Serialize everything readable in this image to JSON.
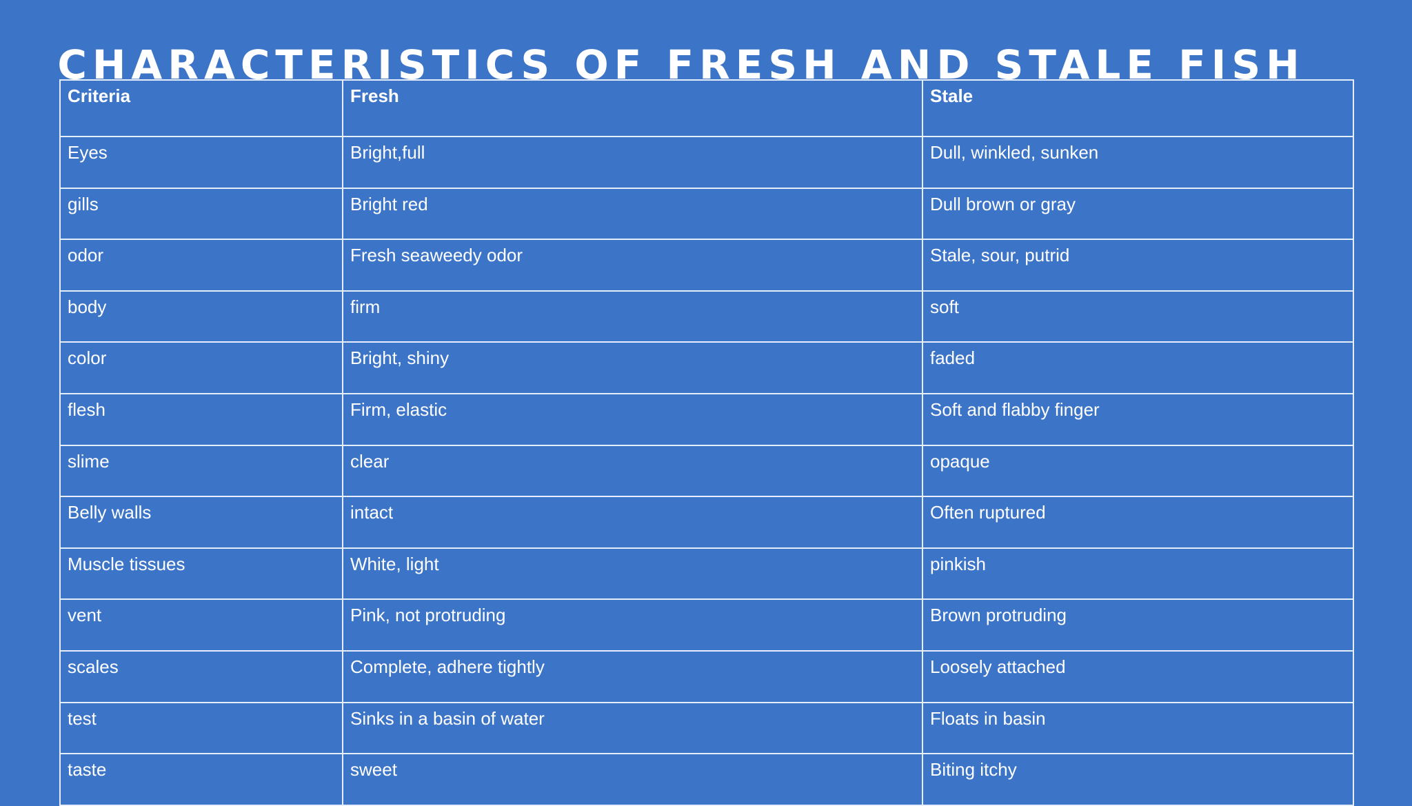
{
  "title": "CHARACTERISTICS OF FRESH AND STALE FISH",
  "table": {
    "headers": [
      "Criteria",
      "Fresh",
      "Stale"
    ],
    "rows": [
      [
        "Eyes",
        "Bright,full",
        "Dull, winkled, sunken"
      ],
      [
        "gills",
        "Bright red",
        "Dull brown or gray"
      ],
      [
        "odor",
        "Fresh seaweedy odor",
        "Stale, sour, putrid"
      ],
      [
        "body",
        "firm",
        "soft"
      ],
      [
        "color",
        "Bright, shiny",
        "faded"
      ],
      [
        "flesh",
        "Firm, elastic",
        "Soft and flabby finger"
      ],
      [
        "slime",
        "clear",
        "opaque"
      ],
      [
        "Belly walls",
        "intact",
        "Often ruptured"
      ],
      [
        "Muscle tissues",
        "White, light",
        "pinkish"
      ],
      [
        "vent",
        "Pink, not protruding",
        "Brown protruding"
      ],
      [
        "scales",
        "Complete, adhere tightly",
        "Loosely attached"
      ],
      [
        "test",
        "Sinks in a basin of water",
        "Floats in basin"
      ],
      [
        "taste",
        "sweet",
        "Biting itchy"
      ]
    ]
  },
  "colors": {
    "background": "#3c74c7",
    "text": "#ffffff",
    "grid": "#e6eefb"
  }
}
